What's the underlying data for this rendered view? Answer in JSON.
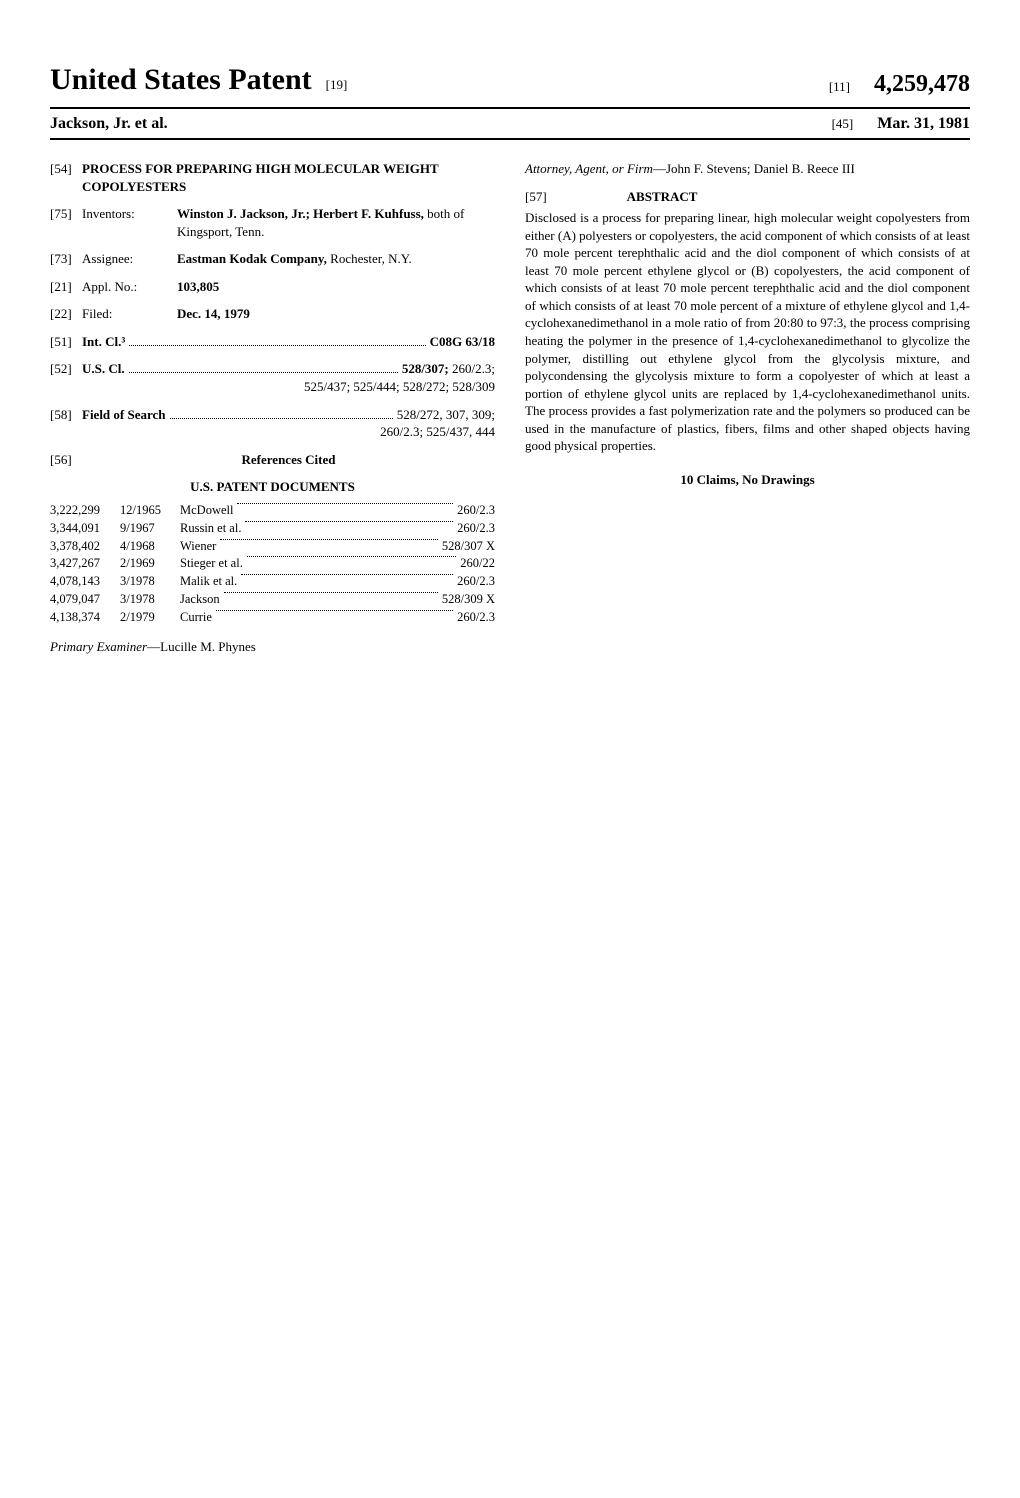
{
  "header": {
    "title": "United States Patent",
    "title_bracket": "[19]",
    "patent_number_bracket": "[11]",
    "patent_number": "4,259,478",
    "inventor_line": "Jackson, Jr. et al.",
    "date_bracket": "[45]",
    "issue_date": "Mar. 31, 1981"
  },
  "left": {
    "title_code": "[54]",
    "title": "PROCESS FOR PREPARING HIGH MOLECULAR WEIGHT COPOLYESTERS",
    "inventors_code": "[75]",
    "inventors_label": "Inventors:",
    "inventors": "Winston J. Jackson, Jr.; Herbert F. Kuhfuss,",
    "inventors_loc": " both of Kingsport, Tenn.",
    "assignee_code": "[73]",
    "assignee_label": "Assignee:",
    "assignee": "Eastman Kodak Company,",
    "assignee_loc": " Rochester, N.Y.",
    "appl_code": "[21]",
    "appl_label": "Appl. No.:",
    "appl_no": "103,805",
    "filed_code": "[22]",
    "filed_label": "Filed:",
    "filed_date": "Dec. 14, 1979",
    "intcl_code": "[51]",
    "intcl_label": "Int. Cl.³",
    "intcl_value": "C08G 63/18",
    "uscl_code": "[52]",
    "uscl_label": "U.S. Cl.",
    "uscl_value": "528/307;",
    "uscl_tail": " 260/2.3;",
    "uscl_cont": "525/437; 525/444; 528/272; 528/309",
    "search_code": "[58]",
    "search_label": "Field of Search",
    "search_value": "528/272, 307, 309;",
    "search_cont": "260/2.3; 525/437, 444",
    "refs_code": "[56]",
    "refs_title": "References Cited",
    "docs_title": "U.S. PATENT DOCUMENTS",
    "refs": [
      {
        "num": "3,222,299",
        "date": "12/1965",
        "name": "McDowell",
        "cls": "260/2.3"
      },
      {
        "num": "3,344,091",
        "date": "9/1967",
        "name": "Russin et al.",
        "cls": "260/2.3"
      },
      {
        "num": "3,378,402",
        "date": "4/1968",
        "name": "Wiener",
        "cls": "528/307 X"
      },
      {
        "num": "3,427,267",
        "date": "2/1969",
        "name": "Stieger et al.",
        "cls": "260/22"
      },
      {
        "num": "4,078,143",
        "date": "3/1978",
        "name": "Malik et al.",
        "cls": "260/2.3"
      },
      {
        "num": "4,079,047",
        "date": "3/1978",
        "name": "Jackson",
        "cls": "528/309 X"
      },
      {
        "num": "4,138,374",
        "date": "2/1979",
        "name": "Currie",
        "cls": "260/2.3"
      }
    ],
    "examiner_label": "Primary Examiner",
    "examiner": "—Lucille M. Phynes"
  },
  "right": {
    "attorney_label": "Attorney, Agent, or Firm",
    "attorney": "—John F. Stevens; Daniel B. Reece III",
    "abstract_code": "[57]",
    "abstract_heading": "ABSTRACT",
    "abstract": "Disclosed is a process for preparing linear, high molecular weight copolyesters from either (A) polyesters or copolyesters, the acid component of which consists of at least 70 mole percent terephthalic acid and the diol component of which consists of at least 70 mole percent ethylene glycol or (B) copolyesters, the acid component of which consists of at least 70 mole percent terephthalic acid and the diol component of which consists of at least 70 mole percent of a mixture of ethylene glycol and 1,4-cyclohexanedimethanol in a mole ratio of from 20:80 to 97:3, the process comprising heating the polymer in the presence of 1,4-cyclohexanedimethanol to glycolize the polymer, distilling out ethylene glycol from the glycolysis mixture, and polycondensing the glycolysis mixture to form a copolyester of which at least a portion of ethylene glycol units are replaced by 1,4-cyclohexanedimethanol units. The process provides a fast polymerization rate and the polymers so produced can be used in the manufacture of plastics, fibers, films and other shaped objects having good physical properties.",
    "claims": "10 Claims, No Drawings"
  }
}
